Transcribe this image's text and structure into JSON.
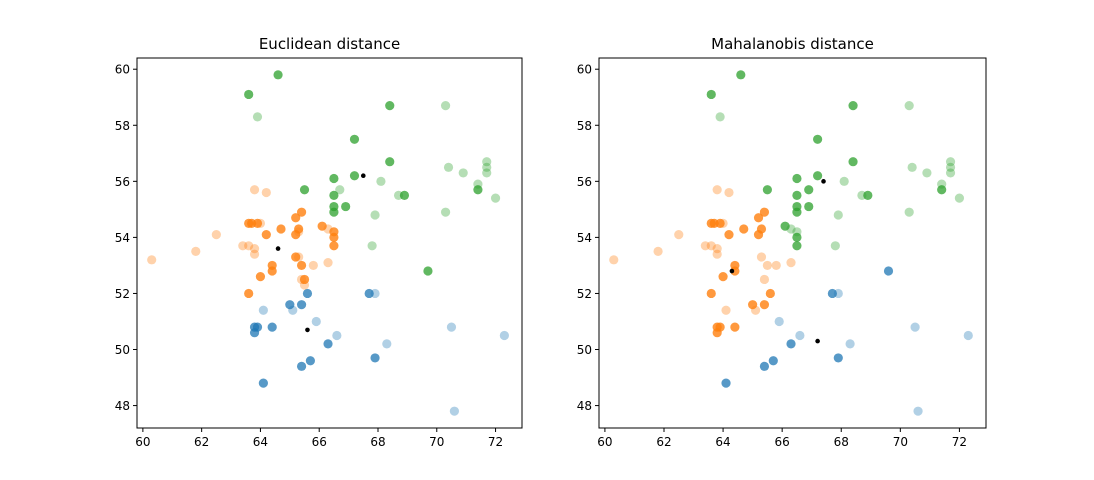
{
  "chart_data": [
    {
      "type": "scatter",
      "title": "Euclidean distance",
      "xlabel": "",
      "ylabel": "",
      "xlim": [
        59.8,
        72.9
      ],
      "ylim": [
        47.2,
        60.4
      ],
      "xticks": [
        60,
        62,
        64,
        66,
        68,
        70,
        72
      ],
      "yticks": [
        48,
        50,
        52,
        54,
        56,
        58,
        60
      ],
      "grid": false,
      "series": [
        {
          "color": "#1f77b4",
          "opacity": 0.35,
          "points": [
            [
              64.1,
              51.4
            ],
            [
              65.1,
              51.4
            ],
            [
              65.9,
              51.0
            ],
            [
              67.9,
              52.0
            ],
            [
              68.3,
              50.2
            ],
            [
              70.5,
              50.8
            ],
            [
              72.3,
              50.5
            ],
            [
              70.6,
              47.8
            ],
            [
              66.6,
              50.5
            ]
          ]
        },
        {
          "color": "#1f77b4",
          "opacity": 0.75,
          "points": [
            [
              65.0,
              51.6
            ],
            [
              65.4,
              51.6
            ],
            [
              65.6,
              52.0
            ],
            [
              67.7,
              52.0
            ],
            [
              63.8,
              50.8
            ],
            [
              63.9,
              50.8
            ],
            [
              64.4,
              50.8
            ],
            [
              63.8,
              50.6
            ],
            [
              66.3,
              50.2
            ],
            [
              67.9,
              49.7
            ],
            [
              65.7,
              49.6
            ],
            [
              65.4,
              49.4
            ],
            [
              64.1,
              48.8
            ]
          ]
        },
        {
          "color": "#ff7f0e",
          "opacity": 0.35,
          "points": [
            [
              60.3,
              53.2
            ],
            [
              61.8,
              53.5
            ],
            [
              62.5,
              54.1
            ],
            [
              63.4,
              53.7
            ],
            [
              63.6,
              53.7
            ],
            [
              63.8,
              53.4
            ],
            [
              63.8,
              53.6
            ],
            [
              63.8,
              55.7
            ],
            [
              64.2,
              55.6
            ],
            [
              64.0,
              54.5
            ],
            [
              65.3,
              53.3
            ],
            [
              65.4,
              52.5
            ],
            [
              65.5,
              52.3
            ],
            [
              65.8,
              53.0
            ],
            [
              66.3,
              53.1
            ],
            [
              66.3,
              54.3
            ],
            [
              65.3,
              54.2
            ]
          ]
        },
        {
          "color": "#ff7f0e",
          "opacity": 0.8,
          "points": [
            [
              63.6,
              54.5
            ],
            [
              63.7,
              54.5
            ],
            [
              63.9,
              54.5
            ],
            [
              64.2,
              54.1
            ],
            [
              64.7,
              54.3
            ],
            [
              65.2,
              54.7
            ],
            [
              65.4,
              54.9
            ],
            [
              65.3,
              54.3
            ],
            [
              64.4,
              53.0
            ],
            [
              64.4,
              52.8
            ],
            [
              64.0,
              52.6
            ],
            [
              63.6,
              52.0
            ],
            [
              65.4,
              53.0
            ],
            [
              65.5,
              52.5
            ],
            [
              65.2,
              53.3
            ],
            [
              66.1,
              54.4
            ],
            [
              66.5,
              54.2
            ],
            [
              66.5,
              54.0
            ],
            [
              66.5,
              53.7
            ],
            [
              65.2,
              54.1
            ]
          ]
        },
        {
          "color": "#2ca02c",
          "opacity": 0.35,
          "points": [
            [
              63.9,
              58.3
            ],
            [
              68.1,
              56.0
            ],
            [
              70.3,
              58.7
            ],
            [
              70.4,
              56.5
            ],
            [
              70.9,
              56.3
            ],
            [
              71.4,
              55.9
            ],
            [
              71.7,
              56.7
            ],
            [
              71.7,
              56.5
            ],
            [
              71.7,
              56.3
            ],
            [
              72.0,
              55.4
            ],
            [
              70.3,
              54.9
            ],
            [
              68.7,
              55.5
            ],
            [
              67.9,
              54.8
            ],
            [
              67.8,
              53.7
            ],
            [
              66.7,
              55.7
            ]
          ]
        },
        {
          "color": "#2ca02c",
          "opacity": 0.75,
          "points": [
            [
              63.6,
              59.1
            ],
            [
              64.6,
              59.8
            ],
            [
              67.2,
              57.5
            ],
            [
              68.4,
              58.7
            ],
            [
              68.4,
              56.7
            ],
            [
              66.5,
              56.1
            ],
            [
              67.2,
              56.2
            ],
            [
              66.5,
              55.5
            ],
            [
              66.5,
              55.1
            ],
            [
              66.5,
              54.9
            ],
            [
              65.5,
              55.7
            ],
            [
              66.9,
              55.1
            ],
            [
              68.9,
              55.5
            ],
            [
              69.7,
              52.8
            ],
            [
              71.4,
              55.7
            ]
          ]
        },
        {
          "color": "#000000",
          "opacity": 1,
          "small": true,
          "points": [
            [
              64.6,
              53.6
            ],
            [
              67.5,
              56.2
            ],
            [
              65.6,
              50.7
            ]
          ]
        }
      ]
    },
    {
      "type": "scatter",
      "title": "Mahalanobis distance",
      "xlabel": "",
      "ylabel": "",
      "xlim": [
        59.8,
        72.9
      ],
      "ylim": [
        47.2,
        60.4
      ],
      "xticks": [
        60,
        62,
        64,
        66,
        68,
        70,
        72
      ],
      "yticks": [
        48,
        50,
        52,
        54,
        56,
        58,
        60
      ],
      "grid": false,
      "series": [
        {
          "color": "#1f77b4",
          "opacity": 0.35,
          "points": [
            [
              67.9,
              52.0
            ],
            [
              65.9,
              51.0
            ],
            [
              68.3,
              50.2
            ],
            [
              70.5,
              50.8
            ],
            [
              72.3,
              50.5
            ],
            [
              70.6,
              47.8
            ],
            [
              66.6,
              50.5
            ]
          ]
        },
        {
          "color": "#1f77b4",
          "opacity": 0.75,
          "points": [
            [
              67.7,
              52.0
            ],
            [
              69.6,
              52.8
            ],
            [
              66.3,
              50.2
            ],
            [
              67.9,
              49.7
            ],
            [
              65.7,
              49.6
            ],
            [
              65.4,
              49.4
            ],
            [
              64.1,
              48.8
            ]
          ]
        },
        {
          "color": "#ff7f0e",
          "opacity": 0.35,
          "points": [
            [
              60.3,
              53.2
            ],
            [
              61.8,
              53.5
            ],
            [
              62.5,
              54.1
            ],
            [
              63.4,
              53.7
            ],
            [
              63.6,
              53.7
            ],
            [
              63.8,
              53.4
            ],
            [
              63.8,
              53.6
            ],
            [
              63.8,
              55.7
            ],
            [
              64.2,
              55.6
            ],
            [
              64.0,
              54.5
            ],
            [
              65.3,
              53.3
            ],
            [
              65.5,
              53.0
            ],
            [
              65.8,
              53.0
            ],
            [
              66.3,
              53.1
            ],
            [
              64.1,
              51.4
            ],
            [
              65.1,
              51.4
            ],
            [
              65.4,
              52.5
            ]
          ]
        },
        {
          "color": "#ff7f0e",
          "opacity": 0.8,
          "points": [
            [
              63.6,
              54.5
            ],
            [
              63.7,
              54.5
            ],
            [
              63.9,
              54.5
            ],
            [
              64.2,
              54.1
            ],
            [
              64.7,
              54.3
            ],
            [
              65.2,
              54.7
            ],
            [
              65.4,
              54.9
            ],
            [
              65.3,
              54.3
            ],
            [
              65.2,
              54.1
            ],
            [
              64.4,
              53.0
            ],
            [
              64.4,
              52.8
            ],
            [
              64.0,
              52.6
            ],
            [
              63.6,
              52.0
            ],
            [
              65.6,
              52.0
            ],
            [
              65.0,
              51.6
            ],
            [
              65.4,
              51.6
            ],
            [
              63.8,
              50.8
            ],
            [
              63.9,
              50.8
            ],
            [
              64.4,
              50.8
            ],
            [
              63.8,
              50.6
            ]
          ]
        },
        {
          "color": "#2ca02c",
          "opacity": 0.35,
          "points": [
            [
              63.9,
              58.3
            ],
            [
              68.1,
              56.0
            ],
            [
              70.3,
              58.7
            ],
            [
              70.4,
              56.5
            ],
            [
              70.9,
              56.3
            ],
            [
              71.4,
              55.9
            ],
            [
              71.7,
              56.7
            ],
            [
              71.7,
              56.5
            ],
            [
              71.7,
              56.3
            ],
            [
              72.0,
              55.4
            ],
            [
              70.3,
              54.9
            ],
            [
              68.7,
              55.5
            ],
            [
              67.9,
              54.8
            ],
            [
              67.8,
              53.7
            ],
            [
              66.3,
              54.3
            ],
            [
              66.5,
              54.2
            ]
          ]
        },
        {
          "color": "#2ca02c",
          "opacity": 0.75,
          "points": [
            [
              63.6,
              59.1
            ],
            [
              64.6,
              59.8
            ],
            [
              67.2,
              57.5
            ],
            [
              68.4,
              58.7
            ],
            [
              68.4,
              56.7
            ],
            [
              66.5,
              56.1
            ],
            [
              67.2,
              56.2
            ],
            [
              66.5,
              55.5
            ],
            [
              66.5,
              55.1
            ],
            [
              66.5,
              54.9
            ],
            [
              65.5,
              55.7
            ],
            [
              66.9,
              55.1
            ],
            [
              68.9,
              55.5
            ],
            [
              66.9,
              55.7
            ],
            [
              71.4,
              55.7
            ],
            [
              66.1,
              54.4
            ],
            [
              66.5,
              54.0
            ],
            [
              66.5,
              53.7
            ]
          ]
        },
        {
          "color": "#000000",
          "opacity": 1,
          "small": true,
          "points": [
            [
              64.3,
              52.8
            ],
            [
              67.4,
              56.0
            ],
            [
              67.2,
              50.3
            ]
          ]
        }
      ]
    }
  ]
}
